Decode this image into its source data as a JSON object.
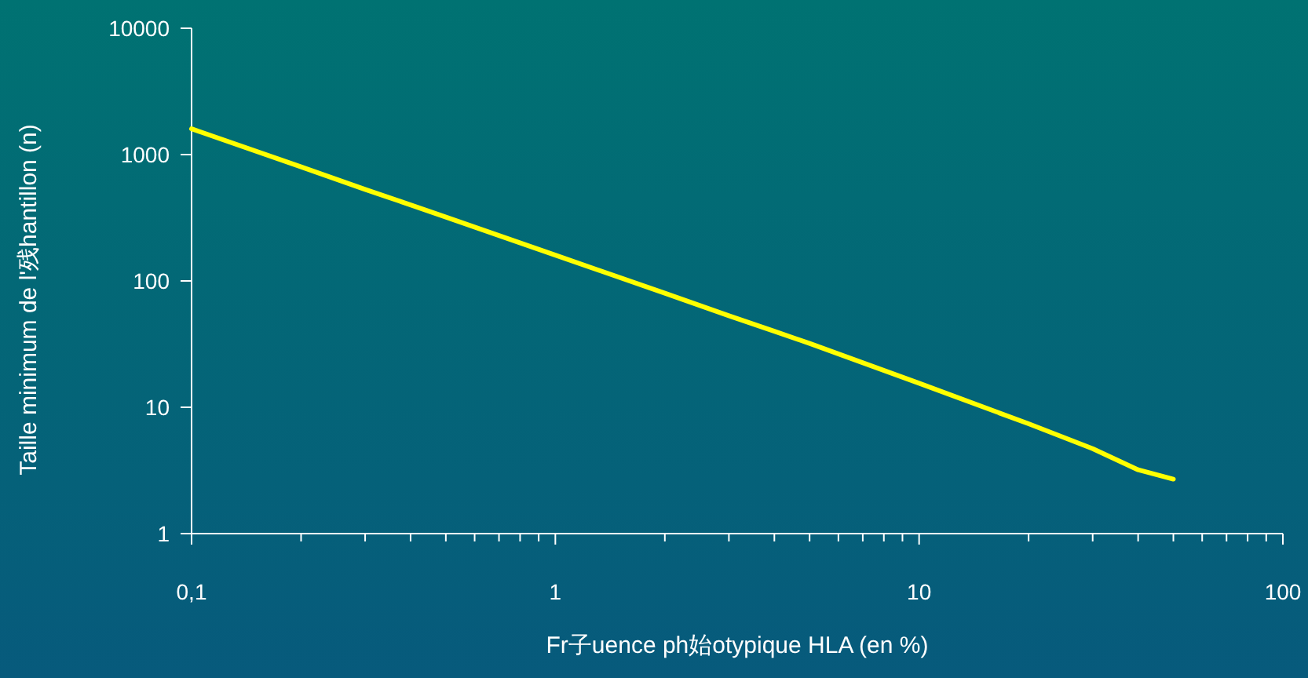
{
  "chart_data": {
    "type": "line",
    "xlabel": "Fr子uence ph始otypique HLA (en %)",
    "ylabel": "Taille minimum de l'残hantillon (n)",
    "log": "xy",
    "grid": false,
    "marker": "none",
    "line_style": "solid",
    "x": [
      0.1,
      0.2,
      0.3,
      0.4,
      0.5,
      1,
      2,
      3,
      4,
      5,
      10,
      20,
      30,
      40,
      50
    ],
    "series": [
      {
        "color": "#ffff00",
        "values": [
          1600,
          800,
          530,
          400,
          320,
          160,
          80,
          53,
          40,
          32,
          15.5,
          7.4,
          4.7,
          3.2,
          2.7
        ]
      }
    ],
    "xlim": [
      0.1,
      100
    ],
    "ylim": [
      1,
      10000
    ],
    "xticks": [
      {
        "value": 0.1,
        "label": "0,1"
      },
      {
        "value": 0.2,
        "label": null
      },
      {
        "value": 0.3,
        "label": null
      },
      {
        "value": 0.4,
        "label": null
      },
      {
        "value": 0.5,
        "label": null
      },
      {
        "value": 0.6,
        "label": null
      },
      {
        "value": 0.7,
        "label": null
      },
      {
        "value": 0.8,
        "label": null
      },
      {
        "value": 0.9,
        "label": null
      },
      1,
      {
        "value": 2,
        "label": null
      },
      {
        "value": 3,
        "label": null
      },
      {
        "value": 4,
        "label": null
      },
      {
        "value": 5,
        "label": null
      },
      {
        "value": 6,
        "label": null
      },
      {
        "value": 7,
        "label": null
      },
      {
        "value": 8,
        "label": null
      },
      {
        "value": 9,
        "label": null
      },
      10,
      {
        "value": 20,
        "label": null
      },
      {
        "value": 30,
        "label": null
      },
      {
        "value": 40,
        "label": null
      },
      {
        "value": 50,
        "label": null
      },
      {
        "value": 60,
        "label": null
      },
      {
        "value": 70,
        "label": null
      },
      {
        "value": 80,
        "label": null
      },
      {
        "value": 90,
        "label": null
      },
      100
    ],
    "yticks": [
      1,
      10,
      100,
      1000,
      10000
    ]
  }
}
